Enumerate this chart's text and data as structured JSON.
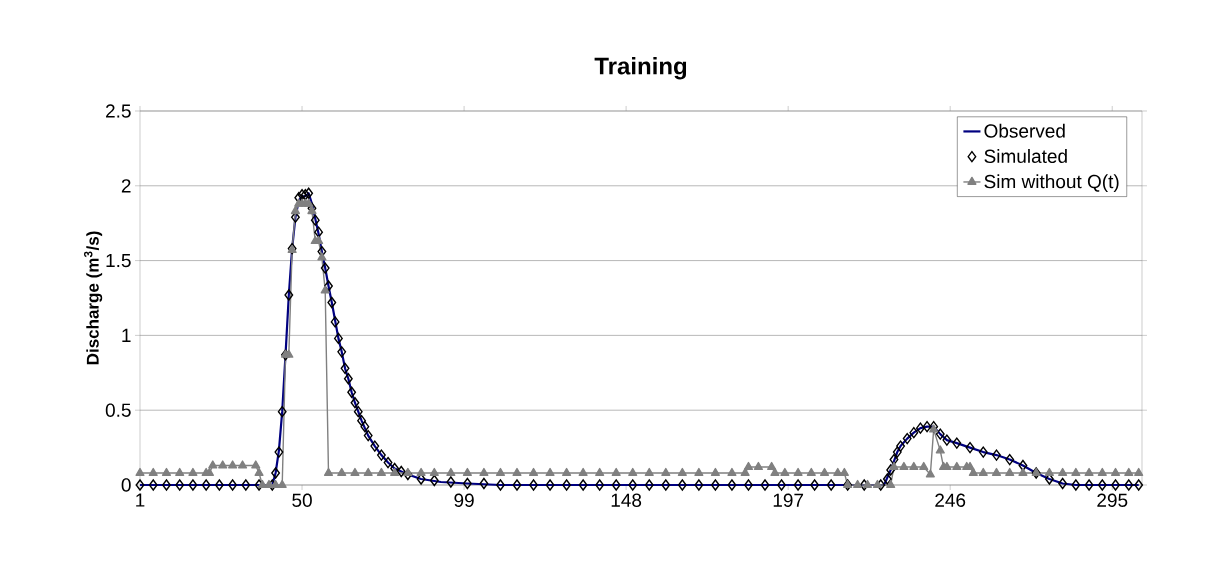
{
  "chart_data": {
    "type": "line",
    "title": "Training",
    "ylabel": "Discharge (m$^{3}$/s)",
    "xlim": [
      1,
      304
    ],
    "xticks": [
      1,
      50,
      99,
      148,
      197,
      246,
      295
    ],
    "ylim": [
      0,
      2.5
    ],
    "yticks": [
      0,
      0.5,
      1,
      1.5,
      2,
      2.5
    ],
    "grid": "y",
    "legend": "top right",
    "series": [
      {
        "name": "Observed",
        "color": "#000080",
        "marker": "none",
        "line_style": "solid",
        "x": [
          1,
          41,
          42,
          43,
          44,
          45,
          46,
          47,
          48,
          49,
          50,
          51,
          52,
          53,
          54,
          55,
          56,
          57,
          58,
          59,
          60,
          61,
          62,
          63,
          64,
          65,
          66,
          67,
          68,
          69,
          70,
          72,
          74,
          76,
          78,
          82,
          86,
          92,
          100,
          110,
          226,
          227,
          228,
          229,
          230,
          231,
          233,
          235,
          237,
          239,
          241,
          243,
          245,
          248,
          252,
          256,
          260,
          264,
          268,
          272,
          276,
          280,
          284,
          303
        ],
        "values": [
          0,
          0,
          0.08,
          0.23,
          0.49,
          0.87,
          1.27,
          1.58,
          1.79,
          1.9,
          1.93,
          1.93,
          1.95,
          1.88,
          1.78,
          1.68,
          1.56,
          1.45,
          1.33,
          1.22,
          1.1,
          0.98,
          0.89,
          0.78,
          0.71,
          0.62,
          0.55,
          0.49,
          0.43,
          0.38,
          0.33,
          0.26,
          0.2,
          0.15,
          0.11,
          0.07,
          0.04,
          0.02,
          0.01,
          0,
          0,
          0.05,
          0.1,
          0.16,
          0.22,
          0.26,
          0.31,
          0.35,
          0.38,
          0.39,
          0.39,
          0.34,
          0.3,
          0.28,
          0.25,
          0.22,
          0.2,
          0.17,
          0.13,
          0.08,
          0.04,
          0.01,
          0,
          0
        ]
      },
      {
        "name": "Simulated",
        "type": "scatter",
        "color": "#000000",
        "marker": "diamond",
        "x": [
          1,
          5,
          9,
          13,
          17,
          21,
          25,
          29,
          33,
          37,
          41,
          42,
          43,
          44,
          45,
          46,
          47,
          48,
          49,
          50,
          51,
          52,
          53,
          54,
          55,
          56,
          57,
          58,
          59,
          60,
          61,
          62,
          63,
          64,
          65,
          66,
          67,
          68,
          69,
          70,
          72,
          74,
          76,
          78,
          80,
          82,
          86,
          90,
          95,
          100,
          105,
          110,
          115,
          120,
          125,
          130,
          135,
          140,
          145,
          150,
          155,
          160,
          165,
          170,
          175,
          180,
          185,
          190,
          195,
          200,
          205,
          210,
          215,
          220,
          225,
          227,
          228,
          229,
          230,
          231,
          233,
          235,
          237,
          239,
          241,
          243,
          245,
          248,
          252,
          256,
          260,
          264,
          268,
          272,
          276,
          280,
          284,
          288,
          292,
          296,
          300,
          303
        ],
        "values": [
          0,
          0,
          0,
          0,
          0,
          0,
          0,
          0,
          0,
          0,
          0,
          0.08,
          0.22,
          0.49,
          0.87,
          1.27,
          1.58,
          1.79,
          1.92,
          1.94,
          1.94,
          1.95,
          1.85,
          1.77,
          1.69,
          1.56,
          1.45,
          1.33,
          1.22,
          1.09,
          0.98,
          0.89,
          0.78,
          0.71,
          0.62,
          0.55,
          0.49,
          0.43,
          0.39,
          0.33,
          0.26,
          0.2,
          0.15,
          0.11,
          0.09,
          0.07,
          0.04,
          0.03,
          0.02,
          0.01,
          0.01,
          0,
          0,
          0,
          0,
          0,
          0,
          0,
          0,
          0,
          0,
          0,
          0,
          0,
          0,
          0,
          0,
          0,
          0,
          0,
          0,
          0,
          0,
          0,
          0,
          0.04,
          0.1,
          0.17,
          0.22,
          0.26,
          0.31,
          0.35,
          0.38,
          0.39,
          0.39,
          0.34,
          0.3,
          0.28,
          0.25,
          0.22,
          0.2,
          0.17,
          0.13,
          0.08,
          0.04,
          0.01,
          0,
          0,
          0,
          0,
          0,
          0
        ]
      },
      {
        "name": "Sim without Q(t)",
        "color": "#808080",
        "marker": "triangle",
        "line_style": "solid",
        "x": [
          1,
          5,
          9,
          13,
          17,
          21,
          22,
          23,
          26,
          29,
          32,
          36,
          37,
          38,
          40,
          42,
          44,
          45,
          46,
          47,
          48,
          49,
          50,
          51,
          52,
          53,
          54,
          55,
          56,
          57,
          58,
          62,
          66,
          70,
          74,
          78,
          82,
          86,
          90,
          95,
          100,
          105,
          110,
          115,
          120,
          125,
          130,
          135,
          140,
          145,
          150,
          155,
          160,
          165,
          170,
          175,
          180,
          184,
          185,
          188,
          192,
          193,
          196,
          200,
          204,
          208,
          212,
          214,
          215,
          218,
          221,
          224,
          228,
          229,
          232,
          235,
          238,
          240,
          241,
          243,
          244,
          245,
          248,
          251,
          252,
          253,
          256,
          260,
          264,
          268,
          272,
          276,
          280,
          284,
          288,
          292,
          296,
          300,
          303
        ],
        "values": [
          0.08,
          0.08,
          0.08,
          0.08,
          0.08,
          0.08,
          0.08,
          0.13,
          0.13,
          0.13,
          0.13,
          0.13,
          0.08,
          0,
          0,
          0,
          0,
          0.87,
          0.87,
          1.57,
          1.83,
          1.88,
          1.88,
          1.88,
          1.88,
          1.83,
          1.63,
          1.63,
          1.52,
          1.3,
          0.08,
          0.08,
          0.08,
          0.08,
          0.08,
          0.08,
          0.08,
          0.08,
          0.08,
          0.08,
          0.08,
          0.08,
          0.08,
          0.08,
          0.08,
          0.08,
          0.08,
          0.08,
          0.08,
          0.08,
          0.08,
          0.08,
          0.08,
          0.08,
          0.08,
          0.08,
          0.08,
          0.08,
          0.12,
          0.12,
          0.12,
          0.08,
          0.08,
          0.08,
          0.08,
          0.08,
          0.08,
          0.08,
          0,
          0,
          0,
          0,
          0,
          0.12,
          0.12,
          0.12,
          0.12,
          0.07,
          0.37,
          0.23,
          0.12,
          0.12,
          0.12,
          0.12,
          0.12,
          0.08,
          0.08,
          0.08,
          0.08,
          0.08,
          0.08,
          0.08,
          0.08,
          0.08,
          0.08,
          0.08,
          0.08,
          0.08,
          0.08
        ]
      }
    ]
  }
}
